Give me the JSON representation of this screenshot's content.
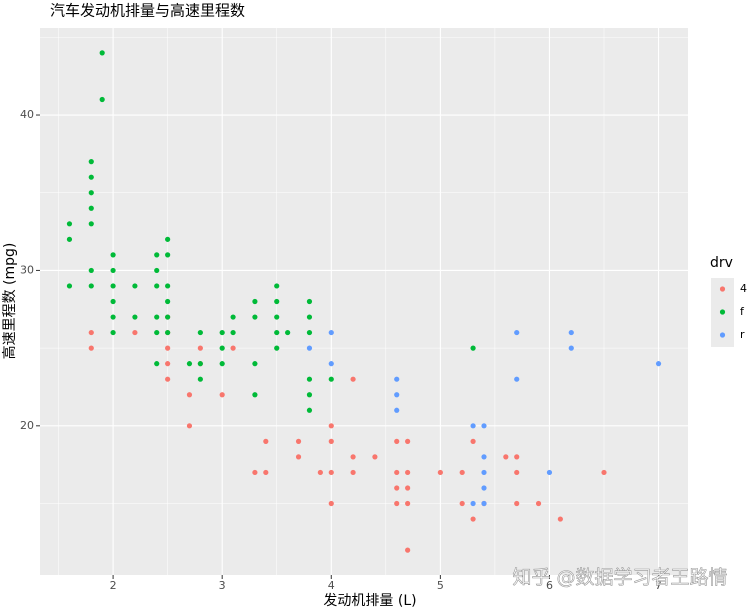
{
  "chart_data": {
    "type": "scatter",
    "title": "汽车发动机排量与高速里程数",
    "x_label": "发动机排量 (L)",
    "y_label": "高速里程数 (mpg)",
    "legend_title": "drv",
    "watermark": "知乎 @数据学习者王路情",
    "xlim": [
      1.33,
      7.27
    ],
    "ylim": [
      10.4,
      45.6
    ],
    "xticks": [
      2,
      3,
      4,
      5,
      6,
      7
    ],
    "yticks": [
      20,
      30,
      40
    ],
    "grid": true,
    "legend": "right",
    "series": [
      {
        "name": "4",
        "color": "#F8766D",
        "x": [
          1.8,
          1.8,
          2.2,
          2.5,
          2.5,
          2.5,
          2.5,
          2.5,
          2.7,
          2.7,
          2.8,
          2.8,
          3.0,
          3.1,
          3.3,
          3.4,
          3.4,
          3.7,
          3.7,
          3.9,
          4.0,
          4.0,
          4.0,
          4.0,
          4.2,
          4.2,
          4.2,
          4.4,
          4.6,
          4.6,
          4.6,
          4.6,
          4.7,
          4.7,
          4.7,
          4.7,
          4.7,
          5.0,
          5.2,
          5.2,
          5.3,
          5.3,
          5.4,
          5.6,
          5.7,
          5.7,
          5.7,
          5.9,
          6.1,
          6.5
        ],
        "values": [
          26,
          25,
          26,
          27,
          26,
          25,
          24,
          23,
          22,
          20,
          25,
          24,
          22,
          25,
          17,
          19,
          17,
          19,
          18,
          17,
          20,
          19,
          17,
          15,
          23,
          18,
          17,
          18,
          19,
          17,
          16,
          15,
          19,
          17,
          16,
          15,
          12,
          17,
          17,
          15,
          19,
          14,
          15,
          18,
          18,
          17,
          15,
          15,
          14,
          17
        ]
      },
      {
        "name": "f",
        "color": "#00BA38",
        "x": [
          1.6,
          1.6,
          1.6,
          1.8,
          1.8,
          1.8,
          1.8,
          1.8,
          1.8,
          1.8,
          1.9,
          1.9,
          2.0,
          2.0,
          2.0,
          2.0,
          2.0,
          2.0,
          2.2,
          2.2,
          2.4,
          2.4,
          2.4,
          2.4,
          2.4,
          2.4,
          2.5,
          2.5,
          2.5,
          2.5,
          2.5,
          2.5,
          2.7,
          2.8,
          2.8,
          2.8,
          3.0,
          3.0,
          3.0,
          3.1,
          3.1,
          3.3,
          3.3,
          3.3,
          3.3,
          3.5,
          3.5,
          3.5,
          3.5,
          3.5,
          3.6,
          3.8,
          3.8,
          3.8,
          3.8,
          3.8,
          3.8,
          4.0,
          5.3
        ],
        "values": [
          33,
          32,
          29,
          37,
          36,
          35,
          34,
          33,
          30,
          29,
          44,
          41,
          31,
          30,
          29,
          28,
          27,
          26,
          29,
          27,
          31,
          30,
          29,
          27,
          26,
          24,
          32,
          31,
          29,
          28,
          27,
          26,
          24,
          26,
          24,
          23,
          26,
          25,
          24,
          27,
          26,
          28,
          27,
          24,
          22,
          29,
          28,
          27,
          26,
          25,
          26,
          28,
          27,
          26,
          23,
          22,
          21,
          23,
          25
        ]
      },
      {
        "name": "r",
        "color": "#619CFF",
        "x": [
          3.8,
          4.0,
          4.0,
          4.6,
          4.6,
          4.6,
          5.3,
          5.3,
          5.4,
          5.4,
          5.4,
          5.4,
          5.4,
          5.7,
          5.7,
          6.0,
          6.2,
          6.2,
          7.0
        ],
        "values": [
          25,
          26,
          24,
          23,
          22,
          21,
          20,
          15,
          20,
          18,
          17,
          16,
          15,
          26,
          23,
          17,
          26,
          25,
          24
        ]
      }
    ]
  }
}
